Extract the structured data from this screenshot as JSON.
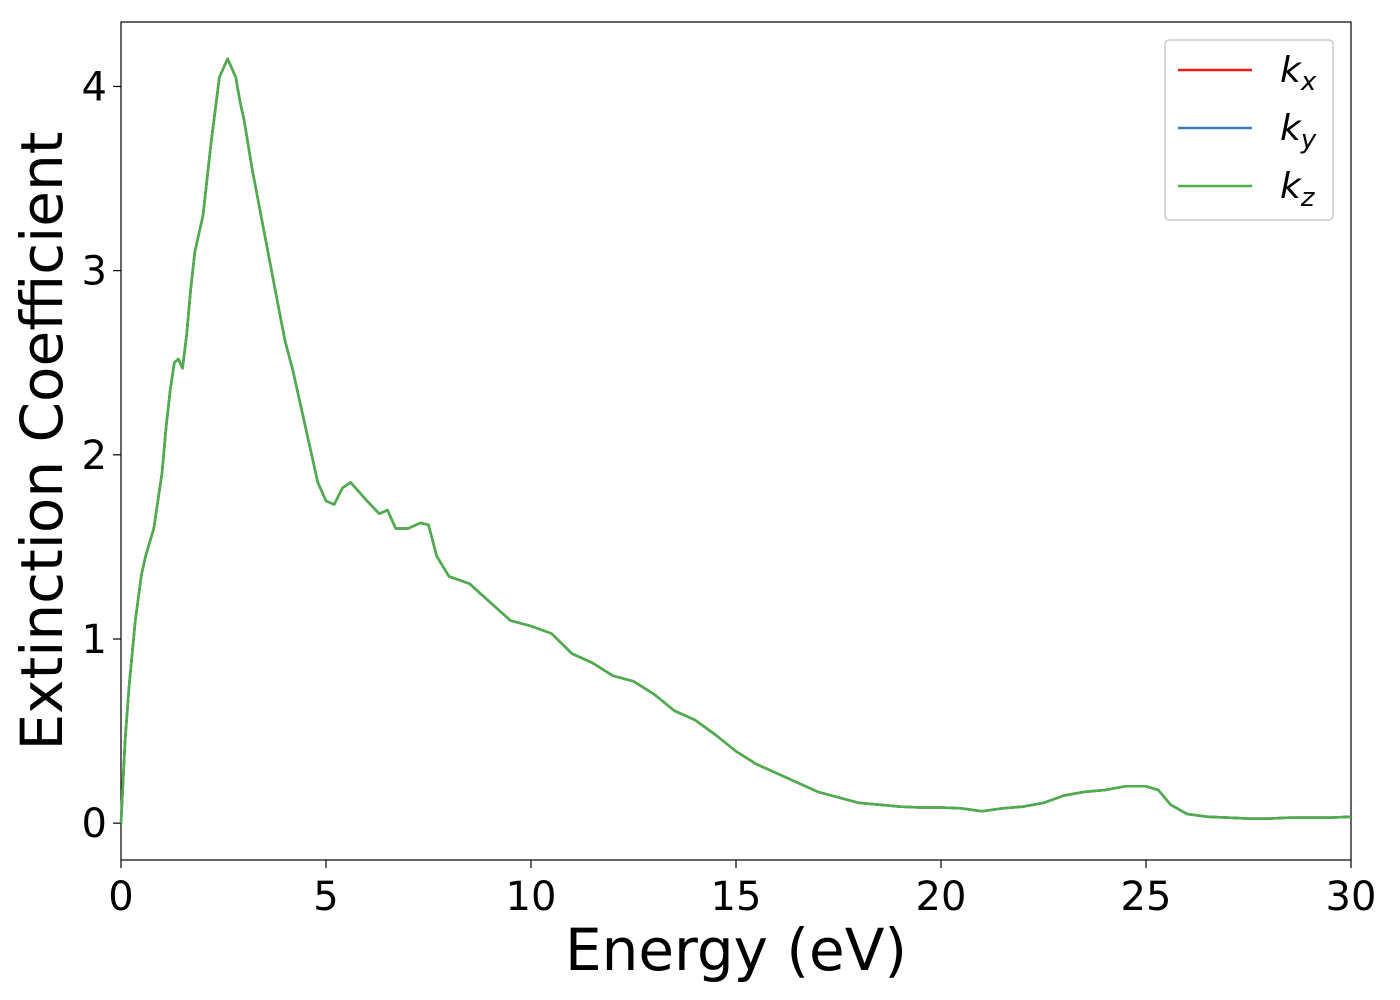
{
  "chart_data": {
    "type": "line",
    "xlabel": "Energy (eV)",
    "ylabel": "Extinction Coefficient",
    "xlim": [
      0,
      30
    ],
    "ylim": [
      -0.2,
      4.35
    ],
    "xticks": [
      0,
      5,
      10,
      15,
      20,
      25,
      30
    ],
    "xtick_labels": [
      "0",
      "5",
      "10",
      "15",
      "20",
      "25",
      "30"
    ],
    "yticks": [
      0,
      1,
      2,
      3,
      4
    ],
    "ytick_labels": [
      "0",
      "1",
      "2",
      "3",
      "4"
    ],
    "grid": false,
    "legend_position": "top-right",
    "x": [
      0,
      0.1,
      0.2,
      0.35,
      0.5,
      0.6,
      0.8,
      1.0,
      1.1,
      1.2,
      1.3,
      1.4,
      1.5,
      1.6,
      1.7,
      1.8,
      2.0,
      2.2,
      2.4,
      2.6,
      2.8,
      2.9,
      3.0,
      3.2,
      3.5,
      3.8,
      4.0,
      4.2,
      4.5,
      4.8,
      5.0,
      5.2,
      5.4,
      5.6,
      5.8,
      6.0,
      6.3,
      6.5,
      6.7,
      7.0,
      7.3,
      7.5,
      7.7,
      8.0,
      8.5,
      9.0,
      9.5,
      10.0,
      10.5,
      11.0,
      11.5,
      12.0,
      12.5,
      13.0,
      13.5,
      14.0,
      14.5,
      15.0,
      15.5,
      16.0,
      16.5,
      17.0,
      17.5,
      18.0,
      18.5,
      19.0,
      19.5,
      20.0,
      20.5,
      21.0,
      21.5,
      22.0,
      22.5,
      23.0,
      23.5,
      24.0,
      24.5,
      25.0,
      25.3,
      25.6,
      26.0,
      26.5,
      27.0,
      27.5,
      28.0,
      28.5,
      29.0,
      29.5,
      30.0
    ],
    "series": [
      {
        "name": "k_x",
        "label_base": "k",
        "label_sub": "x",
        "color": "#e41a1c",
        "values": [
          0,
          0.45,
          0.75,
          1.1,
          1.35,
          1.45,
          1.6,
          1.9,
          2.15,
          2.35,
          2.5,
          2.52,
          2.47,
          2.65,
          2.9,
          3.1,
          3.3,
          3.7,
          4.05,
          4.15,
          4.05,
          3.92,
          3.82,
          3.55,
          3.2,
          2.85,
          2.62,
          2.45,
          2.15,
          1.85,
          1.75,
          1.73,
          1.82,
          1.85,
          1.8,
          1.75,
          1.68,
          1.7,
          1.6,
          1.6,
          1.63,
          1.62,
          1.45,
          1.34,
          1.3,
          1.2,
          1.1,
          1.07,
          1.03,
          0.92,
          0.87,
          0.8,
          0.77,
          0.7,
          0.61,
          0.56,
          0.48,
          0.39,
          0.32,
          0.27,
          0.22,
          0.17,
          0.14,
          0.11,
          0.1,
          0.09,
          0.085,
          0.085,
          0.08,
          0.065,
          0.08,
          0.09,
          0.11,
          0.15,
          0.17,
          0.18,
          0.2,
          0.2,
          0.18,
          0.1,
          0.05,
          0.035,
          0.03,
          0.025,
          0.025,
          0.03,
          0.03,
          0.03,
          0.035
        ]
      },
      {
        "name": "k_y",
        "label_base": "k",
        "label_sub": "y",
        "color": "#377eb8",
        "values": [
          0,
          0.45,
          0.75,
          1.1,
          1.35,
          1.45,
          1.6,
          1.9,
          2.15,
          2.35,
          2.5,
          2.52,
          2.47,
          2.65,
          2.9,
          3.1,
          3.3,
          3.7,
          4.05,
          4.15,
          4.05,
          3.92,
          3.82,
          3.55,
          3.2,
          2.85,
          2.62,
          2.45,
          2.15,
          1.85,
          1.75,
          1.73,
          1.82,
          1.85,
          1.8,
          1.75,
          1.68,
          1.7,
          1.6,
          1.6,
          1.63,
          1.62,
          1.45,
          1.34,
          1.3,
          1.2,
          1.1,
          1.07,
          1.03,
          0.92,
          0.87,
          0.8,
          0.77,
          0.7,
          0.61,
          0.56,
          0.48,
          0.39,
          0.32,
          0.27,
          0.22,
          0.17,
          0.14,
          0.11,
          0.1,
          0.09,
          0.085,
          0.085,
          0.08,
          0.065,
          0.08,
          0.09,
          0.11,
          0.15,
          0.17,
          0.18,
          0.2,
          0.2,
          0.18,
          0.1,
          0.05,
          0.035,
          0.03,
          0.025,
          0.025,
          0.03,
          0.03,
          0.03,
          0.035
        ]
      },
      {
        "name": "k_z",
        "label_base": "k",
        "label_sub": "z",
        "color": "#4daf4a",
        "values": [
          0,
          0.45,
          0.75,
          1.1,
          1.35,
          1.45,
          1.6,
          1.9,
          2.15,
          2.35,
          2.5,
          2.52,
          2.47,
          2.65,
          2.9,
          3.1,
          3.3,
          3.7,
          4.05,
          4.15,
          4.05,
          3.92,
          3.82,
          3.55,
          3.2,
          2.85,
          2.62,
          2.45,
          2.15,
          1.85,
          1.75,
          1.73,
          1.82,
          1.85,
          1.8,
          1.75,
          1.68,
          1.7,
          1.6,
          1.6,
          1.63,
          1.62,
          1.45,
          1.34,
          1.3,
          1.2,
          1.1,
          1.07,
          1.03,
          0.92,
          0.87,
          0.8,
          0.77,
          0.7,
          0.61,
          0.56,
          0.48,
          0.39,
          0.32,
          0.27,
          0.22,
          0.17,
          0.14,
          0.11,
          0.1,
          0.09,
          0.085,
          0.085,
          0.08,
          0.065,
          0.08,
          0.09,
          0.11,
          0.15,
          0.17,
          0.18,
          0.2,
          0.2,
          0.18,
          0.1,
          0.05,
          0.035,
          0.03,
          0.025,
          0.025,
          0.03,
          0.03,
          0.03,
          0.035
        ]
      }
    ]
  }
}
